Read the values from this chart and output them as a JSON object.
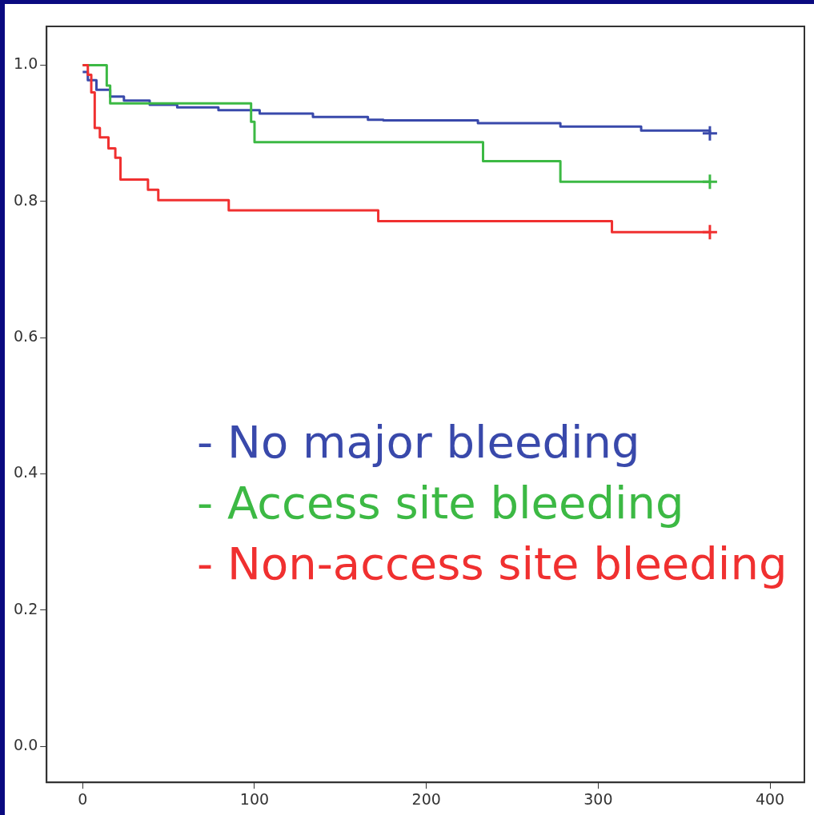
{
  "chart_data": {
    "type": "step",
    "xlim": [
      -21,
      420
    ],
    "ylim": [
      -0.053,
      1.057
    ],
    "xticks": [
      0,
      100,
      200,
      300,
      400
    ],
    "yticks": [
      {
        "value": 0,
        "label": "0.0"
      },
      {
        "value": 0.2,
        "label": "0.2"
      },
      {
        "value": 0.4,
        "label": "0.4"
      },
      {
        "value": 0.6,
        "label": "0.6"
      },
      {
        "value": 0.8,
        "label": "0.8"
      },
      {
        "value": 1,
        "label": "1.0"
      }
    ],
    "grid": false,
    "marker": "none",
    "line_style": "solid",
    "series": [
      {
        "name": "- No major bleeding",
        "color": "#3949ab",
        "x": [
          0,
          3,
          8,
          16,
          24,
          39,
          55,
          79,
          103,
          134,
          166,
          175,
          230,
          278,
          325,
          365
        ],
        "values": [
          0.99,
          0.978,
          0.964,
          0.954,
          0.948,
          0.942,
          0.938,
          0.934,
          0.929,
          0.924,
          0.92,
          0.919,
          0.915,
          0.91,
          0.904,
          0.9
        ]
      },
      {
        "name": "- Access site bleeding",
        "color": "#3cb944",
        "x": [
          0,
          14,
          16,
          98,
          100,
          233,
          278,
          365
        ],
        "values": [
          1.0,
          0.97,
          0.944,
          0.917,
          0.887,
          0.859,
          0.829,
          0.829
        ]
      },
      {
        "name": "- Non-access site bleeding",
        "color": "#f03030",
        "x": [
          0,
          3,
          5,
          7,
          10,
          15,
          19,
          22,
          38,
          44,
          85,
          172,
          308,
          365
        ],
        "values": [
          1.0,
          0.986,
          0.96,
          0.908,
          0.894,
          0.878,
          0.864,
          0.832,
          0.817,
          0.802,
          0.787,
          0.771,
          0.755,
          0.755
        ]
      },
      {
        "type": "scatter",
        "marker": "cross",
        "x": [
          365,
          365,
          365
        ],
        "values": [
          0.9,
          0.829,
          0.755
        ],
        "colors": [
          "#3949ab",
          "#3cb944",
          "#f03030"
        ]
      }
    ]
  }
}
